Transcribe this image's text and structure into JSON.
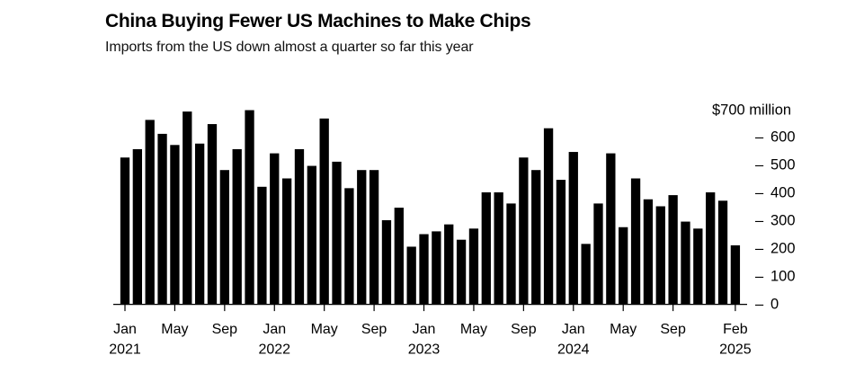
{
  "header": {
    "title": "China Buying Fewer US Machines to Make Chips",
    "subtitle": "Imports from the US down almost a quarter so far this year"
  },
  "chart_data": {
    "type": "bar",
    "title": "China Buying Fewer US Machines to Make Chips",
    "subtitle": "Imports from the US down almost a quarter so far this year",
    "unit": "USD million",
    "categories": [
      "Jan 2021",
      "Feb 2021",
      "Mar 2021",
      "Apr 2021",
      "May 2021",
      "Jun 2021",
      "Jul 2021",
      "Aug 2021",
      "Sep 2021",
      "Oct 2021",
      "Nov 2021",
      "Dec 2021",
      "Jan 2022",
      "Feb 2022",
      "Mar 2022",
      "Apr 2022",
      "May 2022",
      "Jun 2022",
      "Jul 2022",
      "Aug 2022",
      "Sep 2022",
      "Oct 2022",
      "Nov 2022",
      "Dec 2022",
      "Jan 2023",
      "Feb 2023",
      "Mar 2023",
      "Apr 2023",
      "May 2023",
      "Jun 2023",
      "Jul 2023",
      "Aug 2023",
      "Sep 2023",
      "Oct 2023",
      "Nov 2023",
      "Dec 2023",
      "Jan 2024",
      "Feb 2024",
      "Mar 2024",
      "Apr 2024",
      "May 2024",
      "Jun 2024",
      "Jul 2024",
      "Aug 2024",
      "Sep 2024",
      "Oct 2024",
      "Nov 2024",
      "Dec 2024",
      "Jan 2025",
      "Feb 2025"
    ],
    "values": [
      525,
      555,
      660,
      610,
      570,
      690,
      575,
      645,
      480,
      555,
      695,
      420,
      540,
      450,
      555,
      495,
      665,
      510,
      415,
      480,
      480,
      300,
      345,
      205,
      250,
      260,
      285,
      230,
      270,
      400,
      400,
      360,
      525,
      480,
      630,
      445,
      545,
      215,
      360,
      540,
      275,
      450,
      375,
      350,
      390,
      295,
      270,
      400,
      370,
      210
    ],
    "ylim": [
      0,
      700
    ],
    "grid": false,
    "y_axis": {
      "side": "right",
      "top_label": "$700 million",
      "ticks": [
        600,
        500,
        400,
        300,
        200,
        100,
        0
      ],
      "tick_prefix": "–"
    },
    "x_axis": {
      "ticks": [
        {
          "index": 0,
          "month": "Jan",
          "year": "2021"
        },
        {
          "index": 4,
          "month": "May",
          "year": ""
        },
        {
          "index": 8,
          "month": "Sep",
          "year": ""
        },
        {
          "index": 12,
          "month": "Jan",
          "year": "2022"
        },
        {
          "index": 16,
          "month": "May",
          "year": ""
        },
        {
          "index": 20,
          "month": "Sep",
          "year": ""
        },
        {
          "index": 24,
          "month": "Jan",
          "year": "2023"
        },
        {
          "index": 28,
          "month": "May",
          "year": ""
        },
        {
          "index": 32,
          "month": "Sep",
          "year": ""
        },
        {
          "index": 36,
          "month": "Jan",
          "year": "2024"
        },
        {
          "index": 40,
          "month": "May",
          "year": ""
        },
        {
          "index": 44,
          "month": "Sep",
          "year": ""
        },
        {
          "index": 49,
          "month": "Feb",
          "year": "2025"
        }
      ]
    },
    "colors": {
      "bar": "#000000",
      "axis": "#000000",
      "text": "#000000",
      "background": "#ffffff"
    }
  }
}
